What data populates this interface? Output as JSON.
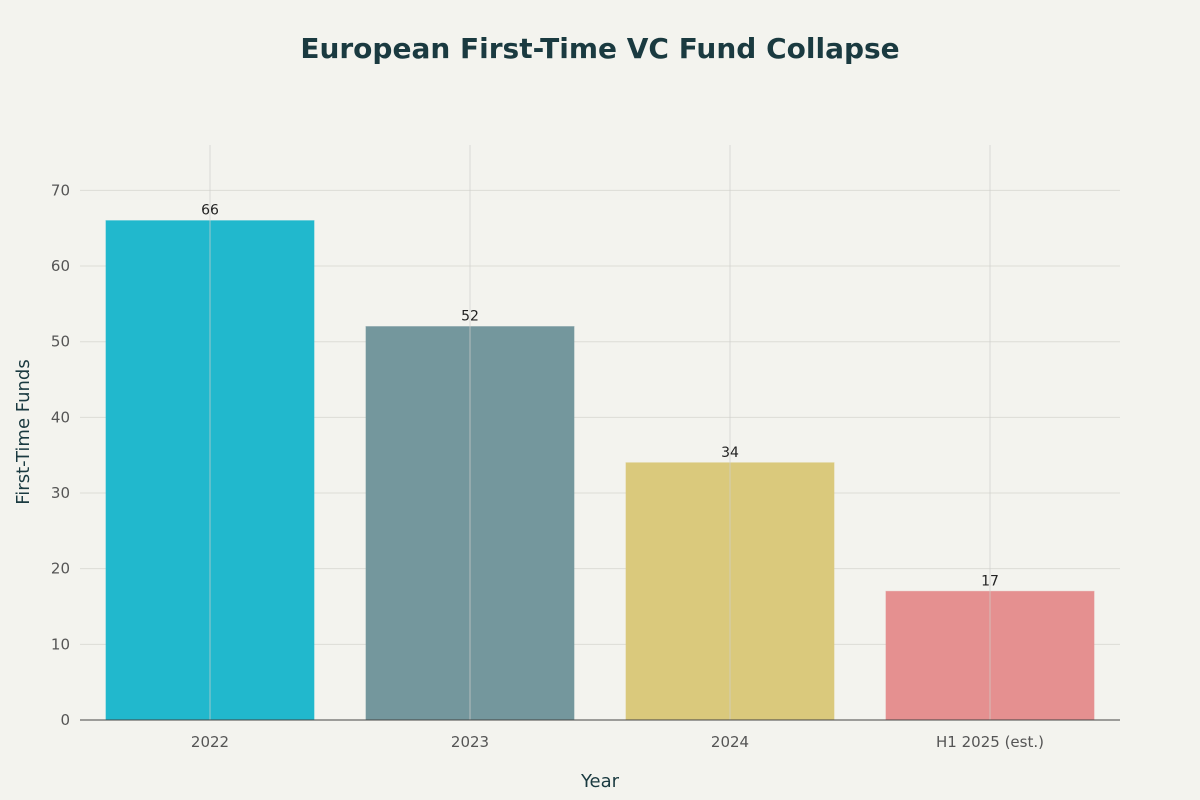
{
  "chart_data": {
    "type": "bar",
    "title": "European First-Time VC Fund Collapse",
    "xlabel": "Year",
    "ylabel": "First-Time Funds",
    "categories": [
      "2022",
      "2023",
      "2024",
      "H1 2025 (est.)"
    ],
    "values": [
      66,
      52,
      34,
      17
    ],
    "data_labels": [
      "66",
      "52",
      "34",
      "17"
    ],
    "colors": [
      "#21b8cd",
      "#74979d",
      "#dac97c",
      "#e59090"
    ],
    "ylim": [
      0,
      76
    ],
    "yticks": [
      0,
      10,
      20,
      30,
      40,
      50,
      60,
      70
    ],
    "grid": true,
    "legend": "none"
  }
}
